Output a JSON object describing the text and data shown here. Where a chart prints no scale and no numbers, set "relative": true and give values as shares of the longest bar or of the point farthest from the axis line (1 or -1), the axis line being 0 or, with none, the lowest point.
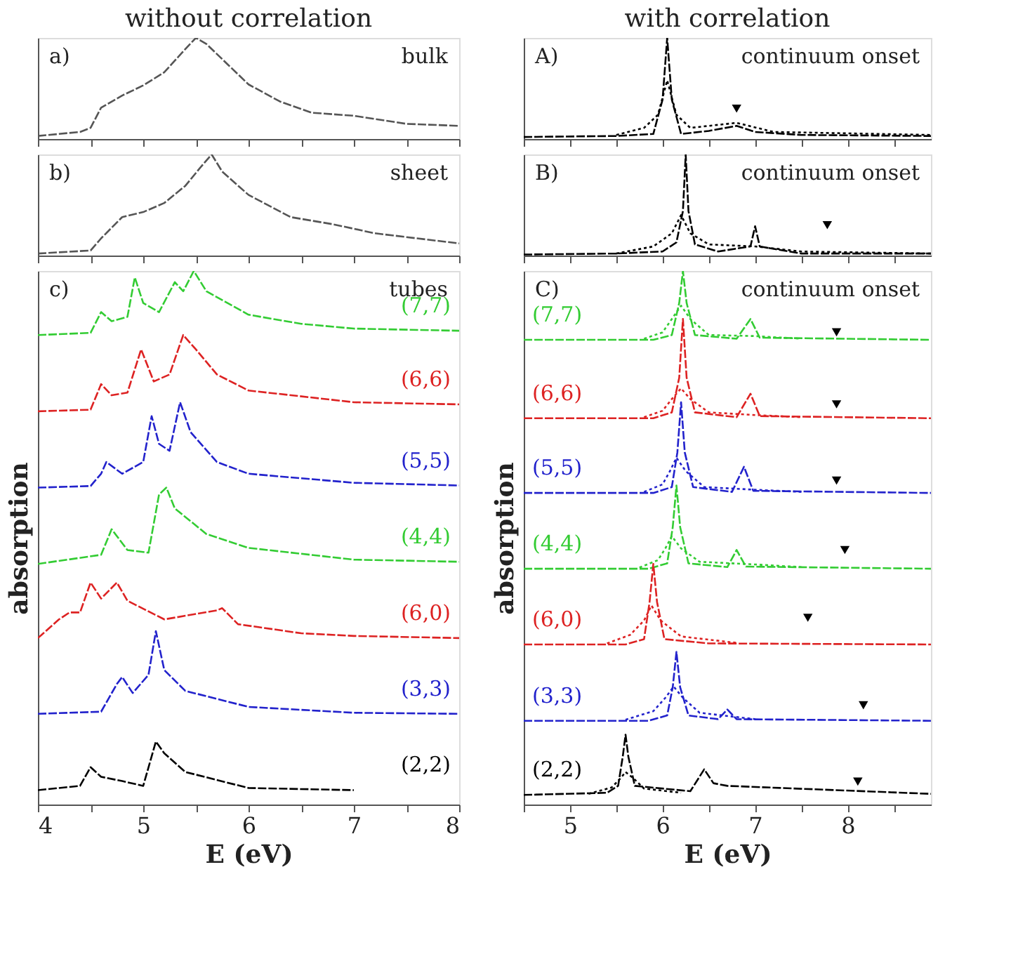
{
  "chart_data": [
    {
      "type": "line",
      "title": "without correlation",
      "relative": true,
      "xlim": [
        4,
        8
      ],
      "xticks": [
        4,
        {
          "value": 4.5,
          "label": null
        },
        5,
        {
          "value": 5.5,
          "label": null
        },
        6,
        {
          "value": 6.5,
          "label": null
        },
        7,
        {
          "value": 7.5,
          "label": null
        },
        8
      ],
      "tick_labels": false,
      "annotations": [
        "a)",
        "bulk"
      ],
      "series": [
        {
          "color": "#555555",
          "line_style": "dashed",
          "x": [
            4.0,
            4.4,
            4.5,
            4.6,
            4.8,
            5.0,
            5.2,
            5.4,
            5.5,
            5.6,
            5.8,
            6.0,
            6.3,
            6.6,
            7.0,
            7.5,
            8.0
          ],
          "values": [
            0.03,
            0.07,
            0.11,
            0.31,
            0.43,
            0.53,
            0.66,
            0.89,
            1.0,
            0.94,
            0.74,
            0.54,
            0.37,
            0.26,
            0.23,
            0.15,
            0.13
          ]
        }
      ]
    },
    {
      "type": "line",
      "relative": true,
      "xlim": [
        4,
        8
      ],
      "xticks": [
        4,
        {
          "value": 4.5,
          "label": null
        },
        5,
        {
          "value": 5.5,
          "label": null
        },
        6,
        {
          "value": 6.5,
          "label": null
        },
        7,
        {
          "value": 7.5,
          "label": null
        },
        8
      ],
      "tick_labels": false,
      "annotations": [
        "b)",
        "sheet"
      ],
      "series": [
        {
          "color": "#555555",
          "line_style": "dashed",
          "x": [
            4.0,
            4.5,
            4.6,
            4.8,
            5.0,
            5.2,
            5.4,
            5.55,
            5.65,
            5.75,
            6.0,
            6.4,
            6.8,
            7.2,
            7.6,
            8.0
          ],
          "values": [
            0.02,
            0.05,
            0.17,
            0.38,
            0.43,
            0.52,
            0.69,
            0.88,
            1.0,
            0.83,
            0.6,
            0.38,
            0.31,
            0.22,
            0.17,
            0.12
          ]
        }
      ]
    },
    {
      "type": "line",
      "relative": true,
      "xlabel": "E (eV)",
      "ylabel": "absorption",
      "xlim": [
        4,
        8
      ],
      "xticks": [
        4,
        {
          "value": 4.5,
          "label": null
        },
        5,
        {
          "value": 5.5,
          "label": null
        },
        6,
        {
          "value": 6.5,
          "label": null
        },
        7,
        {
          "value": 7.5,
          "label": null
        },
        8
      ],
      "tick_labels": "x",
      "annotations": [
        "c)",
        "tubes"
      ],
      "line_style": "dashed",
      "series": [
        {
          "name": "(7,7)",
          "color": "#33cc33",
          "x": [
            4.0,
            4.5,
            4.6,
            4.7,
            4.85,
            4.92,
            5.0,
            5.15,
            5.3,
            5.38,
            5.48,
            5.6,
            6.0,
            6.5,
            7.0,
            8.0
          ],
          "values": [
            0.88,
            0.884,
            0.923,
            0.906,
            0.914,
            0.988,
            0.94,
            0.923,
            0.979,
            0.962,
            1.0,
            0.962,
            0.918,
            0.901,
            0.892,
            0.888
          ]
        },
        {
          "name": "(6,6)",
          "color": "#dd2222",
          "x": [
            4.0,
            4.5,
            4.6,
            4.7,
            4.85,
            4.98,
            5.1,
            5.25,
            5.38,
            5.5,
            5.7,
            6.0,
            7.0,
            8.0
          ],
          "values": [
            0.737,
            0.74,
            0.788,
            0.767,
            0.772,
            0.853,
            0.793,
            0.806,
            0.88,
            0.853,
            0.806,
            0.776,
            0.754,
            0.75
          ]
        },
        {
          "name": "(5,5)",
          "color": "#2222cc",
          "x": [
            4.0,
            4.5,
            4.6,
            4.65,
            4.8,
            5.0,
            5.08,
            5.15,
            5.25,
            5.35,
            5.45,
            5.7,
            6.0,
            7.0,
            8.0
          ],
          "values": [
            0.594,
            0.597,
            0.62,
            0.642,
            0.62,
            0.642,
            0.728,
            0.676,
            0.663,
            0.754,
            0.698,
            0.642,
            0.62,
            0.603,
            0.598
          ]
        },
        {
          "name": "(4,4)",
          "color": "#33cc33",
          "x": [
            4.0,
            4.6,
            4.7,
            4.85,
            5.05,
            5.15,
            5.22,
            5.3,
            5.6,
            6.0,
            7.0,
            8.0
          ],
          "values": [
            0.451,
            0.468,
            0.516,
            0.477,
            0.472,
            0.581,
            0.594,
            0.555,
            0.507,
            0.481,
            0.459,
            0.455
          ]
        },
        {
          "name": "(6,0)",
          "color": "#dd2222",
          "x": [
            4.0,
            4.2,
            4.3,
            4.4,
            4.5,
            4.6,
            4.75,
            4.85,
            5.2,
            5.7,
            5.75,
            5.9,
            6.5,
            7.0,
            8.0
          ],
          "values": [
            0.312,
            0.347,
            0.36,
            0.36,
            0.416,
            0.386,
            0.416,
            0.382,
            0.347,
            0.364,
            0.368,
            0.338,
            0.321,
            0.316,
            0.312
          ]
        },
        {
          "name": "(3,3)",
          "color": "#2222cc",
          "x": [
            4.0,
            4.6,
            4.75,
            4.8,
            4.9,
            5.05,
            5.12,
            5.2,
            5.4,
            6.0,
            7.0,
            8.0
          ],
          "values": [
            0.17,
            0.174,
            0.226,
            0.239,
            0.209,
            0.243,
            0.325,
            0.252,
            0.213,
            0.183,
            0.172,
            0.17
          ]
        },
        {
          "name": "(2,2)",
          "color": "#000000",
          "x": [
            4.0,
            4.4,
            4.5,
            4.6,
            4.8,
            5.0,
            5.12,
            5.2,
            5.4,
            6.0,
            7.0
          ],
          "values": [
            0.027,
            0.035,
            0.07,
            0.052,
            0.044,
            0.035,
            0.118,
            0.096,
            0.061,
            0.031,
            0.027
          ]
        }
      ]
    },
    {
      "type": "line",
      "title": "with correlation",
      "relative": true,
      "xlim": [
        4.5,
        8.9
      ],
      "xticks": [
        {
          "value": 4.5,
          "label": null
        },
        5,
        {
          "value": 5.5,
          "label": null
        },
        6,
        {
          "value": 6.5,
          "label": null
        },
        7,
        {
          "value": 7.5,
          "label": null
        },
        8,
        {
          "value": 8.5,
          "label": null
        }
      ],
      "tick_labels": false,
      "annotations": [
        "A)",
        "continuum onset"
      ],
      "series": [
        {
          "color": "#000000",
          "line_style": "dashed",
          "x": [
            4.5,
            5.5,
            5.9,
            6.0,
            6.05,
            6.1,
            6.2,
            6.5,
            6.8,
            7.0,
            7.5,
            8.9
          ],
          "values": [
            0.02,
            0.03,
            0.05,
            0.39,
            1.0,
            0.39,
            0.05,
            0.08,
            0.13,
            0.07,
            0.04,
            0.03
          ]
        },
        {
          "color": "#000000",
          "line_style": "dotted",
          "x": [
            5.5,
            5.8,
            5.95,
            6.05,
            6.15,
            6.3,
            6.8,
            7.2,
            8.9
          ],
          "values": [
            0.04,
            0.11,
            0.24,
            0.58,
            0.24,
            0.11,
            0.16,
            0.07,
            0.04
          ]
        },
        {
          "type": "scatter",
          "marker": "triangle",
          "color": "#000000",
          "x": [
            6.8
          ],
          "values": [
            0.3
          ]
        }
      ]
    },
    {
      "type": "line",
      "relative": true,
      "xlim": [
        4.5,
        8.9
      ],
      "xticks": [
        {
          "value": 4.5,
          "label": null
        },
        5,
        {
          "value": 5.5,
          "label": null
        },
        6,
        {
          "value": 6.5,
          "label": null
        },
        7,
        {
          "value": 7.5,
          "label": null
        },
        8,
        {
          "value": 8.5,
          "label": null
        }
      ],
      "tick_labels": false,
      "annotations": [
        "B)",
        "continuum onset"
      ],
      "series": [
        {
          "color": "#000000",
          "line_style": "dashed",
          "x": [
            4.5,
            5.5,
            6.0,
            6.15,
            6.22,
            6.25,
            6.28,
            6.35,
            6.6,
            6.95,
            7.0,
            7.05,
            7.5,
            8.9
          ],
          "values": [
            0.01,
            0.02,
            0.04,
            0.13,
            0.44,
            1.0,
            0.44,
            0.11,
            0.04,
            0.09,
            0.29,
            0.09,
            0.02,
            0.02
          ]
        },
        {
          "color": "#000000",
          "line_style": "dotted",
          "x": [
            5.5,
            5.9,
            6.1,
            6.2,
            6.3,
            6.5,
            7.0,
            7.5,
            8.9
          ],
          "values": [
            0.02,
            0.09,
            0.22,
            0.4,
            0.22,
            0.11,
            0.09,
            0.04,
            0.02
          ]
        },
        {
          "type": "scatter",
          "marker": "triangle",
          "color": "#000000",
          "x": [
            7.78
          ],
          "values": [
            0.3
          ]
        }
      ]
    },
    {
      "type": "line",
      "relative": true,
      "xlabel": "E (eV)",
      "ylabel": "absorption",
      "xlim": [
        4.5,
        8.9
      ],
      "xticks": [
        {
          "value": 4.5,
          "label": null
        },
        5,
        {
          "value": 5.5,
          "label": null
        },
        6,
        {
          "value": 6.5,
          "label": null
        },
        7,
        {
          "value": 7.5,
          "label": null
        },
        8,
        {
          "value": 8.5,
          "label": null
        }
      ],
      "tick_labels": "x",
      "annotations": [
        "C)",
        "continuum onset"
      ],
      "series": [
        {
          "name": "(7,7)",
          "color": "#33cc33",
          "line_style": "dashed",
          "x": [
            4.5,
            5.9,
            6.1,
            6.18,
            6.22,
            6.26,
            6.35,
            6.8,
            6.95,
            7.05,
            8.9
          ],
          "values": [
            0.871,
            0.871,
            0.88,
            0.94,
            1.0,
            0.94,
            0.88,
            0.873,
            0.91,
            0.875,
            0.871
          ]
        },
        {
          "color": "#33cc33",
          "line_style": "dotted",
          "x": [
            5.8,
            6.0,
            6.1,
            6.2,
            6.3,
            6.5,
            7.0,
            7.5
          ],
          "values": [
            0.873,
            0.885,
            0.91,
            0.935,
            0.91,
            0.88,
            0.878,
            0.873
          ]
        },
        {
          "name": "(6,6)",
          "color": "#dd2222",
          "line_style": "dashed",
          "x": [
            4.5,
            5.9,
            6.1,
            6.18,
            6.22,
            6.26,
            6.35,
            6.8,
            6.95,
            7.05,
            8.9
          ],
          "values": [
            0.724,
            0.724,
            0.735,
            0.8,
            0.91,
            0.8,
            0.735,
            0.726,
            0.77,
            0.728,
            0.724
          ]
        },
        {
          "color": "#dd2222",
          "line_style": "dotted",
          "x": [
            5.8,
            6.0,
            6.1,
            6.2,
            6.3,
            6.5,
            7.0,
            7.5
          ],
          "values": [
            0.726,
            0.738,
            0.76,
            0.78,
            0.76,
            0.735,
            0.73,
            0.726
          ]
        },
        {
          "name": "(5,5)",
          "color": "#2222cc",
          "line_style": "dashed",
          "x": [
            4.5,
            5.9,
            6.1,
            6.16,
            6.2,
            6.24,
            6.33,
            6.75,
            6.88,
            6.98,
            8.9
          ],
          "values": [
            0.584,
            0.584,
            0.595,
            0.66,
            0.754,
            0.66,
            0.595,
            0.586,
            0.633,
            0.588,
            0.584
          ]
        },
        {
          "color": "#2222cc",
          "line_style": "dotted",
          "x": [
            5.8,
            6.0,
            6.08,
            6.15,
            6.25,
            6.45,
            7.0,
            7.5
          ],
          "values": [
            0.586,
            0.6,
            0.625,
            0.65,
            0.625,
            0.595,
            0.59,
            0.586
          ]
        },
        {
          "name": "(4,4)",
          "color": "#33cc33",
          "line_style": "dashed",
          "x": [
            4.5,
            5.85,
            6.05,
            6.11,
            6.15,
            6.19,
            6.28,
            6.7,
            6.8,
            6.9,
            8.9
          ],
          "values": [
            0.442,
            0.442,
            0.452,
            0.52,
            0.598,
            0.52,
            0.452,
            0.445,
            0.477,
            0.446,
            0.442
          ]
        },
        {
          "color": "#33cc33",
          "line_style": "dotted",
          "x": [
            5.75,
            5.95,
            6.03,
            6.1,
            6.2,
            6.4,
            7.0,
            7.5
          ],
          "values": [
            0.444,
            0.458,
            0.48,
            0.503,
            0.48,
            0.455,
            0.45,
            0.445
          ]
        },
        {
          "name": "(6,0)",
          "color": "#dd2222",
          "line_style": "dashed",
          "x": [
            4.5,
            5.6,
            5.8,
            5.86,
            5.9,
            5.94,
            6.02,
            6.5,
            8.9
          ],
          "values": [
            0.3,
            0.3,
            0.31,
            0.38,
            0.451,
            0.38,
            0.31,
            0.302,
            0.3
          ]
        },
        {
          "color": "#dd2222",
          "line_style": "dotted",
          "x": [
            5.4,
            5.65,
            5.8,
            5.88,
            5.98,
            6.2,
            6.8
          ],
          "values": [
            0.302,
            0.318,
            0.345,
            0.373,
            0.345,
            0.315,
            0.303
          ]
        },
        {
          "name": "(3,3)",
          "color": "#2222cc",
          "line_style": "dashed",
          "x": [
            4.5,
            5.85,
            6.05,
            6.11,
            6.15,
            6.19,
            6.28,
            6.6,
            6.7,
            6.8,
            8.9
          ],
          "values": [
            0.157,
            0.157,
            0.167,
            0.22,
            0.286,
            0.22,
            0.167,
            0.16,
            0.178,
            0.16,
            0.157
          ]
        },
        {
          "color": "#2222cc",
          "line_style": "dotted",
          "x": [
            5.6,
            5.9,
            6.03,
            6.12,
            6.22,
            6.4,
            7.0
          ],
          "values": [
            0.159,
            0.175,
            0.2,
            0.221,
            0.2,
            0.172,
            0.16
          ]
        },
        {
          "name": "(2,2)",
          "color": "#000000",
          "line_style": "dashed",
          "x": [
            4.5,
            5.4,
            5.52,
            5.57,
            5.6,
            5.63,
            5.7,
            6.3,
            6.45,
            6.55,
            6.7,
            8.9
          ],
          "values": [
            0.018,
            0.022,
            0.035,
            0.09,
            0.131,
            0.09,
            0.035,
            0.025,
            0.066,
            0.04,
            0.035,
            0.02
          ]
        },
        {
          "color": "#000000",
          "line_style": "dotted",
          "x": [
            5.2,
            5.45,
            5.55,
            5.6,
            5.68,
            5.8,
            6.2
          ],
          "values": [
            0.02,
            0.032,
            0.05,
            0.061,
            0.05,
            0.03,
            0.022
          ]
        },
        {
          "type": "scatter",
          "marker": "triangle",
          "color": "#000000",
          "x": [
            7.88,
            7.88,
            7.88,
            7.97,
            7.57,
            8.17,
            8.11
          ],
          "values": [
            0.885,
            0.75,
            0.607,
            0.477,
            0.35,
            0.186,
            0.043
          ]
        }
      ]
    }
  ]
}
